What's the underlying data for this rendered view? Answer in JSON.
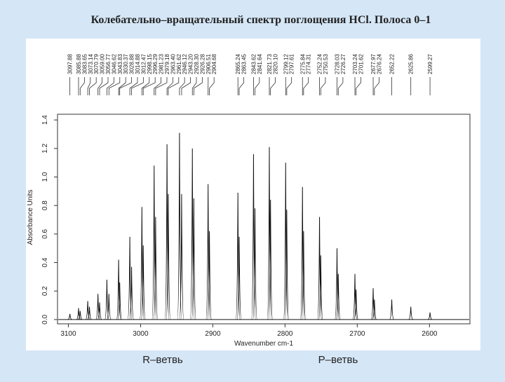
{
  "chart_data": {
    "type": "spectrum",
    "title": "Колебательно–вращательный спектр поглощения HCl. Полоса 0–1",
    "x_label": "Wavenumber cm-1",
    "y_label": "Absorbance Units",
    "annotations": [
      "R–ветвь",
      "P–ветвь"
    ],
    "color": "#111111",
    "xlim": [
      3115,
      2544
    ],
    "xticks": [
      3100,
      3000,
      2900,
      2800,
      2700,
      2600
    ],
    "ylim": [
      -0.03,
      1.44
    ],
    "yticks": [
      {
        "value": 0,
        "label": "0.0"
      },
      0.2,
      0.4,
      0.6,
      0.8,
      {
        "value": 1,
        "label": "1.0"
      },
      1.2,
      1.4
    ],
    "x": [
      3097.88,
      3085.88,
      3083.65,
      3073.14,
      3070.79,
      3059.0,
      3056.77,
      3046.62,
      3043.83,
      3030.37,
      3028.88,
      3014.88,
      3012.47,
      2998.15,
      2996.29,
      2981.23,
      2979.18,
      2963.4,
      2961.62,
      2946.12,
      2943.2,
      2928.3,
      2926.28,
      2906.51,
      2904.68,
      2865.24,
      2863.45,
      2843.62,
      2841.64,
      2821.73,
      2820.1,
      2799.12,
      2797.61,
      2775.84,
      2774.31,
      2752.24,
      2750.53,
      2728.03,
      2726.27,
      2703.24,
      2701.62,
      2677.97,
      2676.24,
      2652.22,
      2625.86,
      2599.27
    ],
    "x_labels": [
      "3097.88",
      "3085.88",
      "3083.65",
      "3073.14",
      "3070.79",
      "3059.00",
      "3056.77",
      "3046.62",
      "3043.83",
      "3030.37",
      "3028.88",
      "3014.88",
      "3012.47",
      "2998.15",
      "2996.29",
      "2981.23",
      "2979.18",
      "2963.40",
      "2961.62",
      "2946.12",
      "2943.20",
      "2928.30",
      "2926.28",
      "2906.51",
      "2904.68",
      "2865.24",
      "2863.45",
      "2843.62",
      "2841.64",
      "2821.73",
      "2820.10",
      "2799.12",
      "2797.61",
      "2775.84",
      "2774.31",
      "2752.24",
      "2750.53",
      "2728.03",
      "2726.27",
      "2703.24",
      "2701.62",
      "2677.97",
      "2676.24",
      "2652.22",
      "2625.86",
      "2599.27"
    ],
    "values": [
      0.04,
      0.08,
      0.06,
      0.13,
      0.09,
      0.18,
      0.12,
      0.28,
      0.18,
      0.42,
      0.26,
      0.58,
      0.37,
      0.79,
      0.52,
      1.08,
      0.72,
      1.23,
      0.88,
      1.31,
      0.88,
      1.2,
      0.85,
      0.95,
      0.62,
      0.89,
      0.58,
      1.16,
      0.78,
      1.21,
      0.84,
      1.1,
      0.77,
      0.93,
      0.62,
      0.72,
      0.45,
      0.5,
      0.32,
      0.32,
      0.21,
      0.22,
      0.14,
      0.14,
      0.09,
      0.05
    ]
  }
}
